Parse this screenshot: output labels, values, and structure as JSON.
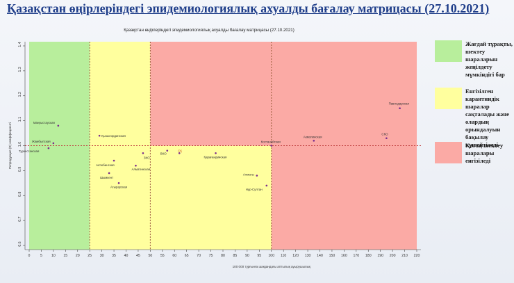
{
  "page_title": "Қазақстан өңірлеріндегі эпидемиологиялық ахуалды бағалау матрицасы  (27.10.2021)",
  "legend": [
    {
      "color": "#b8ee9c",
      "text": "Жағдай тұрақты, шектеу шараларын жеңілдету мүмкіндігі бар"
    },
    {
      "color": "#ffff9e",
      "text": "Енгізілген карантиндік шаралар сақталады және олардың орындалуын бақылау күшейтіледі"
    },
    {
      "color": "#fbaaa5",
      "text": "Қатаң шектеу шаралары енгізіледі"
    }
  ],
  "chart_data": {
    "type": "scatter",
    "title": "Қазақстан өңірлеріндегі эпидемиологиялық ахуалды бағалау матрицасы  (27.10.2021)",
    "xlabel": "100 000 тұрғынға шаққандағы аптылық ауырушылық",
    "ylabel": "Репродукция (R) коэффициенті",
    "xlim": [
      0,
      220
    ],
    "ylim": [
      0.6,
      1.4
    ],
    "xticks": [
      0,
      5,
      10,
      15,
      20,
      25,
      30,
      35,
      40,
      45,
      50,
      55,
      60,
      65,
      70,
      75,
      80,
      85,
      90,
      95,
      100,
      110,
      120,
      130,
      140,
      150,
      160,
      170,
      180,
      190,
      200,
      210,
      220
    ],
    "yticks": [
      0.6,
      0.7,
      0.8,
      0.9,
      1.0,
      1.1,
      1.2,
      1.3,
      1.4
    ],
    "zones": [
      {
        "name": "green",
        "x": [
          0,
          25
        ],
        "color": "#b8ee9c"
      },
      {
        "name": "yellow",
        "x": [
          25,
          50
        ],
        "color": "#ffff9e"
      },
      {
        "name": "red",
        "x": [
          50,
          220
        ],
        "color": "#fbaaa5"
      },
      {
        "name": "yellow",
        "x": [
          50,
          100
        ],
        "y": [
          0.6,
          1.0
        ],
        "color": "#ffff9e"
      }
    ],
    "thresholds": {
      "x": [
        25,
        50,
        100
      ],
      "y": 1.0
    },
    "points": [
      {
        "label": "Маңғыстауская",
        "x": 12,
        "y": 1.08
      },
      {
        "label": "Жамбылская",
        "x": 10,
        "y": 1.01
      },
      {
        "label": "Туркестанская",
        "x": 8,
        "y": 0.99
      },
      {
        "label": "Қызылординская",
        "x": 29,
        "y": 1.04
      },
      {
        "label": "Актюбинская",
        "x": 35,
        "y": 0.94
      },
      {
        "label": "ЗКО",
        "x": 47,
        "y": 0.97
      },
      {
        "label": "Алматинская",
        "x": 44,
        "y": 0.92
      },
      {
        "label": "Шымкент",
        "x": 33,
        "y": 0.89
      },
      {
        "label": "Атырауская",
        "x": 37,
        "y": 0.85
      },
      {
        "label": "ВКО",
        "x": 57,
        "y": 0.98
      },
      {
        "label": "СҚ",
        "x": 62,
        "y": 0.97
      },
      {
        "label": "Қарағандинская",
        "x": 77,
        "y": 0.97
      },
      {
        "label": "Костанайская",
        "x": 100,
        "y": 1.0
      },
      {
        "label": "Алматы",
        "x": 94,
        "y": 0.88
      },
      {
        "label": "Нур-Султан",
        "x": 98,
        "y": 0.84
      },
      {
        "label": "Акмолинская",
        "x": 135,
        "y": 1.02
      },
      {
        "label": "СКО",
        "x": 195,
        "y": 1.03
      },
      {
        "label": "Павлодарская",
        "x": 206,
        "y": 1.15
      }
    ]
  }
}
